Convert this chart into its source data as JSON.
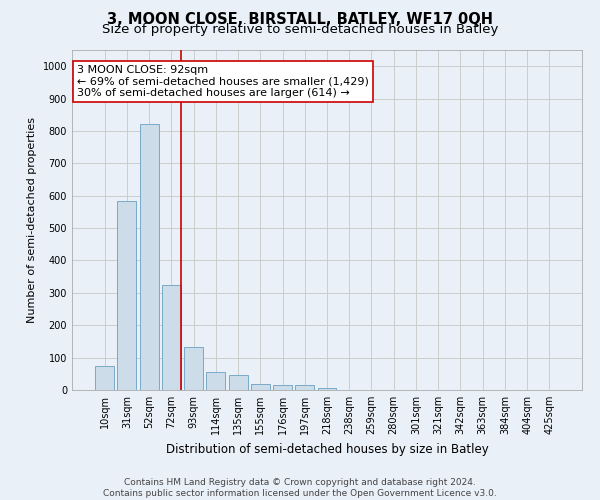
{
  "title": "3, MOON CLOSE, BIRSTALL, BATLEY, WF17 0QH",
  "subtitle": "Size of property relative to semi-detached houses in Batley",
  "xlabel": "Distribution of semi-detached houses by size in Batley",
  "ylabel": "Number of semi-detached properties",
  "categories": [
    "10sqm",
    "31sqm",
    "52sqm",
    "72sqm",
    "93sqm",
    "114sqm",
    "135sqm",
    "155sqm",
    "176sqm",
    "197sqm",
    "218sqm",
    "238sqm",
    "259sqm",
    "280sqm",
    "301sqm",
    "321sqm",
    "342sqm",
    "363sqm",
    "384sqm",
    "404sqm",
    "425sqm"
  ],
  "values": [
    75,
    585,
    820,
    325,
    133,
    55,
    45,
    20,
    15,
    15,
    7,
    0,
    0,
    0,
    0,
    0,
    0,
    0,
    0,
    0,
    0
  ],
  "bar_color": "#ccdce8",
  "bar_edge_color": "#7aaac8",
  "vline_color": "#cc0000",
  "vline_x": 3.45,
  "annotation_line1": "3 MOON CLOSE: 92sqm",
  "annotation_line2": "← 69% of semi-detached houses are smaller (1,429)",
  "annotation_line3": "30% of semi-detached houses are larger (614) →",
  "annotation_box_color": "#ffffff",
  "annotation_box_edge": "#cc0000",
  "ylim": [
    0,
    1050
  ],
  "yticks": [
    0,
    100,
    200,
    300,
    400,
    500,
    600,
    700,
    800,
    900,
    1000
  ],
  "grid_color": "#cccccc",
  "background_color": "#eaf0f8",
  "footer_text": "Contains HM Land Registry data © Crown copyright and database right 2024.\nContains public sector information licensed under the Open Government Licence v3.0.",
  "title_fontsize": 10.5,
  "subtitle_fontsize": 9.5,
  "xlabel_fontsize": 8.5,
  "ylabel_fontsize": 8,
  "tick_fontsize": 7,
  "annotation_fontsize": 8,
  "footer_fontsize": 6.5
}
